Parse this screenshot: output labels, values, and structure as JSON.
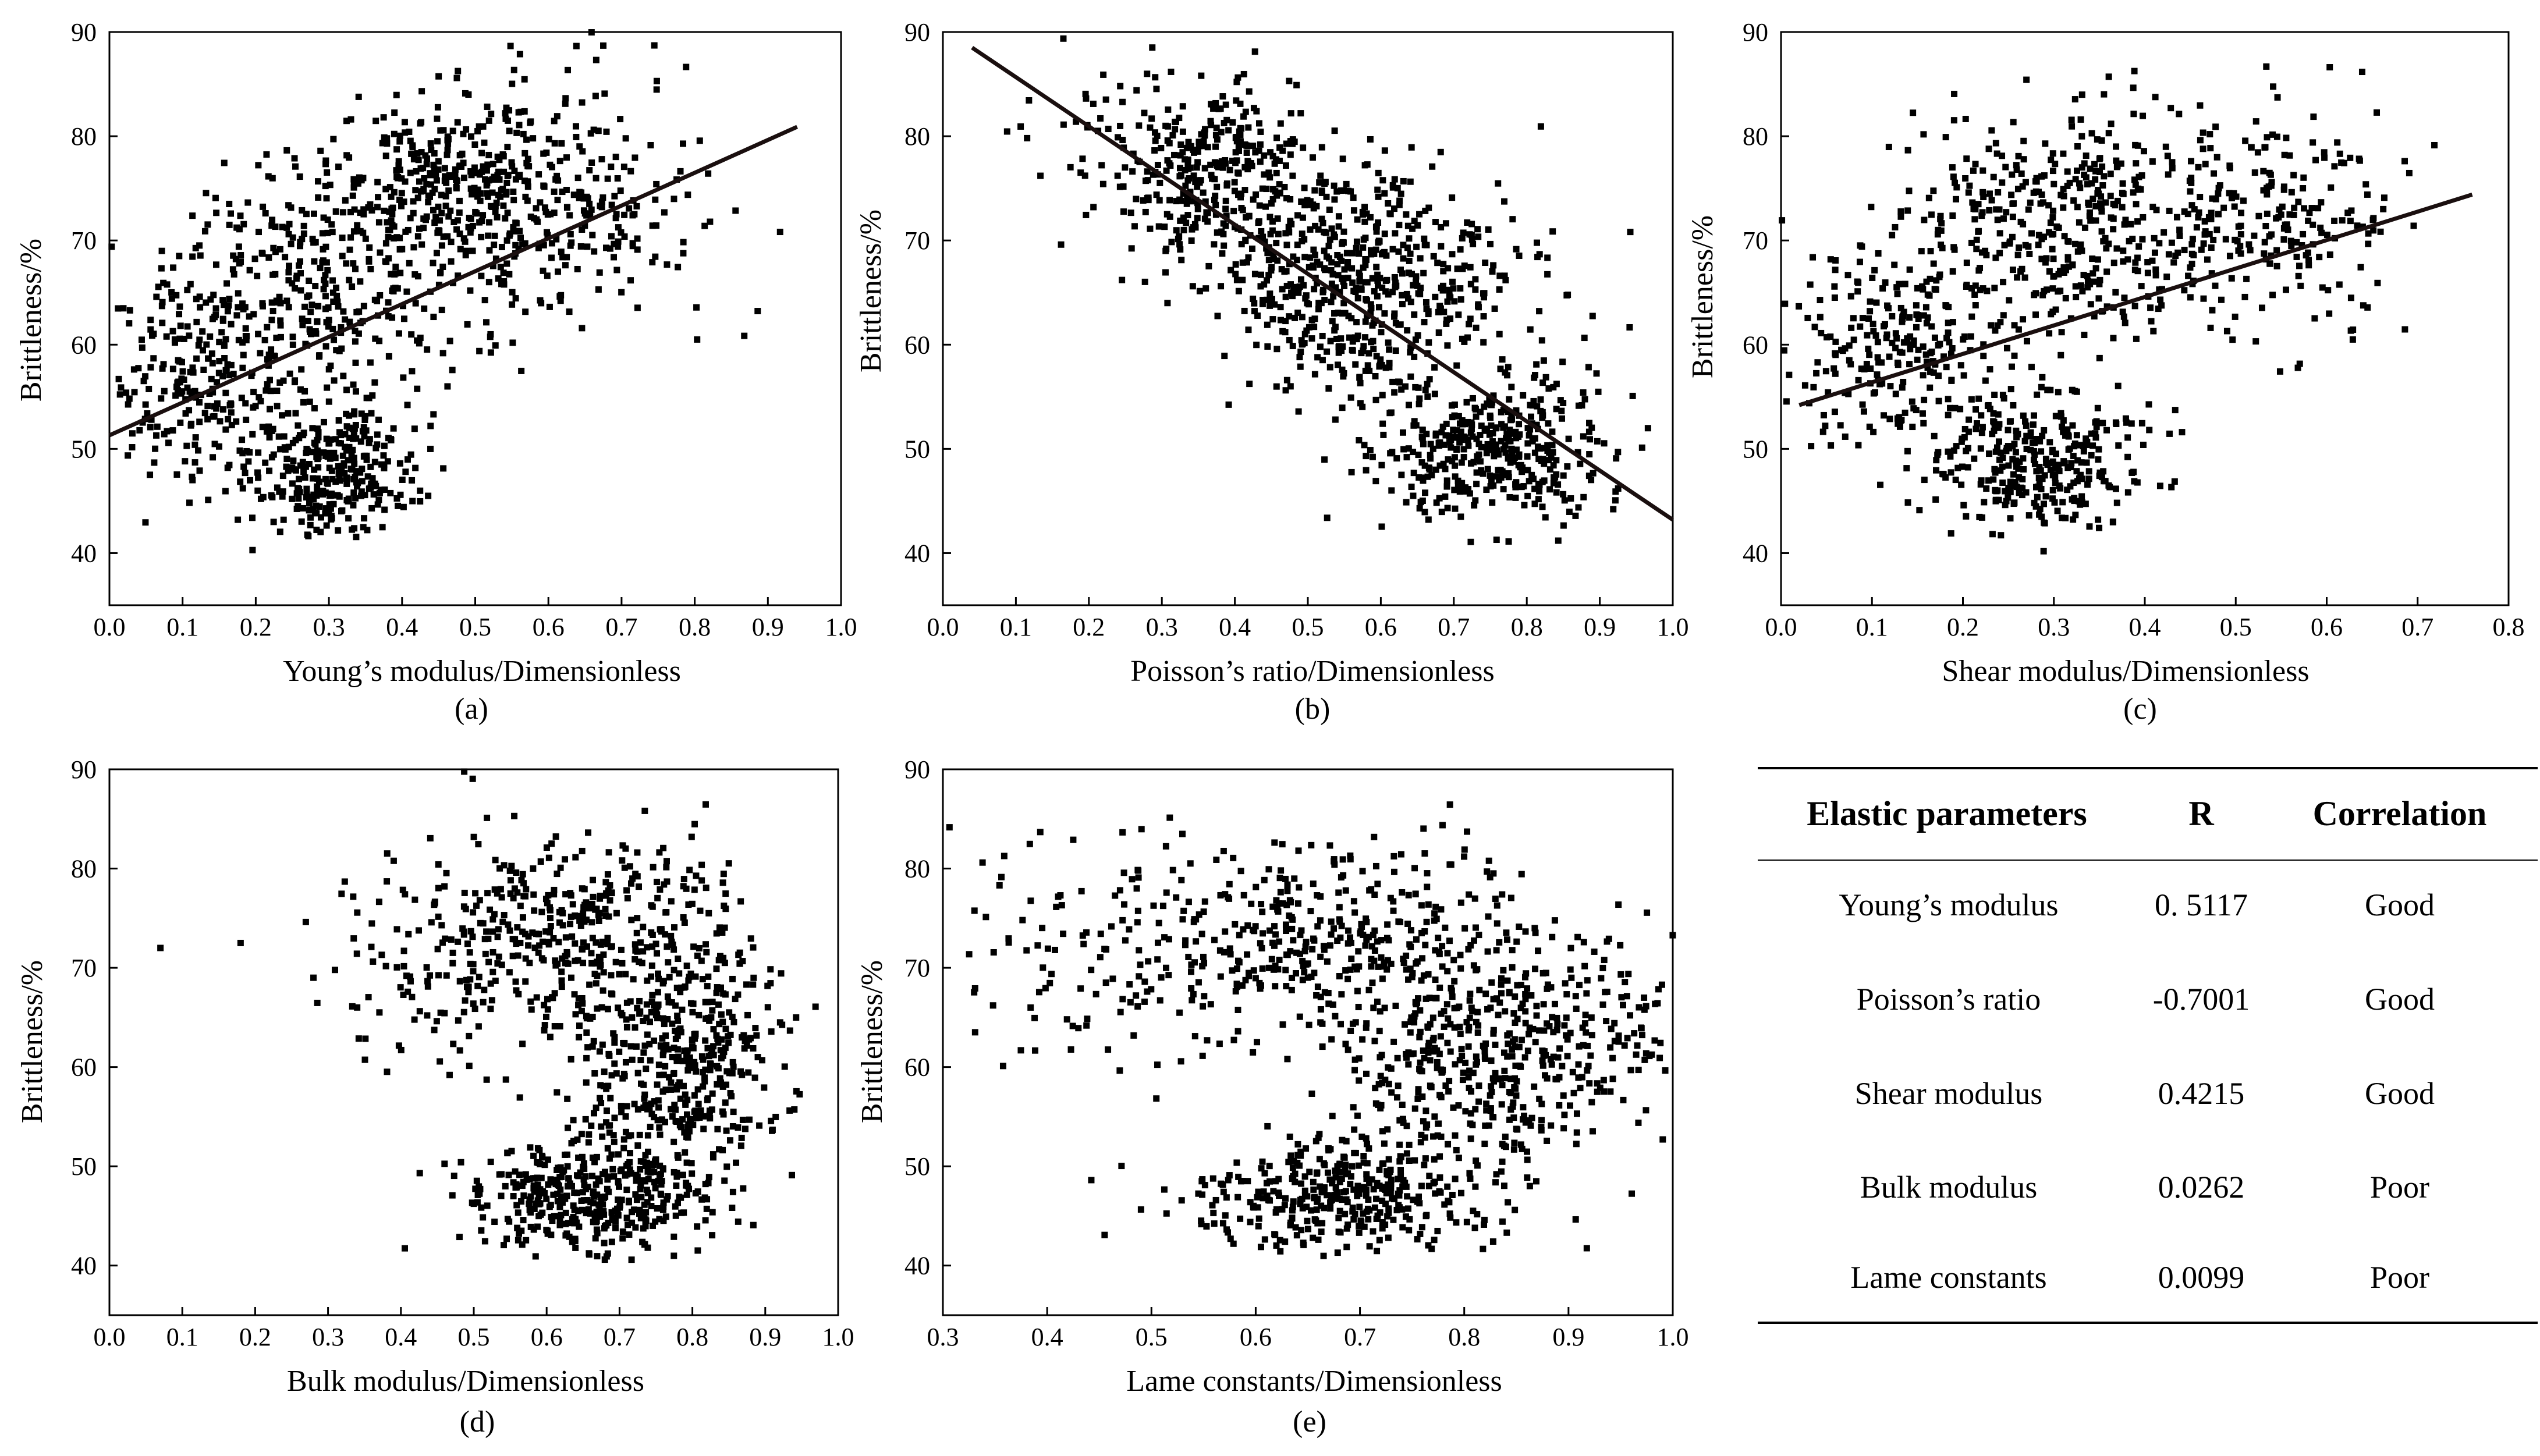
{
  "chart_data": [
    {
      "type": "scatter",
      "panel": "(a)",
      "xlabel": "Young’s modulus/Dimensionless",
      "ylabel": "Brittleness/%",
      "xlim": [
        0.0,
        1.0
      ],
      "ylim": [
        35,
        90
      ],
      "xticks": [
        "0.0",
        "0.1",
        "0.2",
        "0.3",
        "0.4",
        "0.5",
        "0.6",
        "0.7",
        "0.8",
        "0.9",
        "1.0"
      ],
      "yticks": [
        "40",
        "50",
        "60",
        "70",
        "80",
        "90"
      ],
      "fit_line": {
        "x": [
          0.0,
          0.94
        ],
        "y": [
          51.3,
          80.9
        ]
      },
      "clusters": [
        {
          "cx": 0.3,
          "cy": 48,
          "sx": 0.06,
          "sy": 3.3,
          "n": 320
        },
        {
          "cx": 0.12,
          "cy": 58,
          "sx": 0.06,
          "sy": 5.0,
          "n": 220
        },
        {
          "cx": 0.28,
          "cy": 65,
          "sx": 0.1,
          "sy": 6.0,
          "n": 300
        },
        {
          "cx": 0.45,
          "cy": 75,
          "sx": 0.09,
          "sy": 4.5,
          "n": 300
        },
        {
          "cx": 0.62,
          "cy": 73,
          "sx": 0.09,
          "sy": 6.0,
          "n": 260
        }
      ]
    },
    {
      "type": "scatter",
      "panel": "(b)",
      "xlabel": "Poisson’s ratio/Dimensionless",
      "ylabel": "Brittleness/%",
      "xlim": [
        0.0,
        1.0
      ],
      "ylim": [
        35,
        90
      ],
      "xticks": [
        "0.0",
        "0.1",
        "0.2",
        "0.3",
        "0.4",
        "0.5",
        "0.6",
        "0.7",
        "0.8",
        "0.9",
        "1.0"
      ],
      "yticks": [
        "40",
        "50",
        "60",
        "70",
        "80",
        "90"
      ],
      "fit_line": {
        "x": [
          0.04,
          1.0
        ],
        "y": [
          88.5,
          43.2
        ]
      },
      "clusters": [
        {
          "cx": 0.38,
          "cy": 76,
          "sx": 0.07,
          "sy": 4.5,
          "n": 300
        },
        {
          "cx": 0.55,
          "cy": 66,
          "sx": 0.08,
          "sy": 5.5,
          "n": 420
        },
        {
          "cx": 0.75,
          "cy": 50,
          "sx": 0.08,
          "sy": 3.5,
          "n": 380
        },
        {
          "cx": 0.25,
          "cy": 80,
          "sx": 0.08,
          "sy": 4.0,
          "n": 60
        },
        {
          "cx": 0.68,
          "cy": 65,
          "sx": 0.1,
          "sy": 6.0,
          "n": 150
        }
      ]
    },
    {
      "type": "scatter",
      "panel": "(c)",
      "xlabel": "Shear modulus/Dimensionless",
      "ylabel": "Brittleness/%",
      "xlim": [
        0.0,
        0.8
      ],
      "ylim": [
        35,
        90
      ],
      "xticks": [
        "0.0",
        "0.1",
        "0.2",
        "0.3",
        "0.4",
        "0.5",
        "0.6",
        "0.7",
        "0.8"
      ],
      "yticks": [
        "40",
        "50",
        "60",
        "70",
        "80",
        "90"
      ],
      "fit_line": {
        "x": [
          0.02,
          0.76
        ],
        "y": [
          54.2,
          74.4
        ]
      },
      "clusters": [
        {
          "cx": 0.28,
          "cy": 49,
          "sx": 0.06,
          "sy": 3.3,
          "n": 320
        },
        {
          "cx": 0.13,
          "cy": 60,
          "sx": 0.06,
          "sy": 5.0,
          "n": 240
        },
        {
          "cx": 0.3,
          "cy": 72,
          "sx": 0.09,
          "sy": 5.5,
          "n": 380
        },
        {
          "cx": 0.52,
          "cy": 72,
          "sx": 0.08,
          "sy": 5.5,
          "n": 260
        }
      ]
    },
    {
      "type": "scatter",
      "panel": "(d)",
      "xlabel": "Bulk modulus/Dimensionless",
      "ylabel": "Brittleness/%",
      "xlim": [
        0.0,
        1.0
      ],
      "ylim": [
        35,
        90
      ],
      "xticks": [
        "0.0",
        "0.1",
        "0.2",
        "0.3",
        "0.4",
        "0.5",
        "0.6",
        "0.7",
        "0.8",
        "0.9",
        "1.0"
      ],
      "yticks": [
        "40",
        "50",
        "60",
        "70",
        "80",
        "90"
      ],
      "fit_line": null,
      "clusters": [
        {
          "cx": 0.66,
          "cy": 47,
          "sx": 0.08,
          "sy": 2.8,
          "n": 380
        },
        {
          "cx": 0.78,
          "cy": 60,
          "sx": 0.08,
          "sy": 7.0,
          "n": 480
        },
        {
          "cx": 0.63,
          "cy": 74,
          "sx": 0.12,
          "sy": 5.0,
          "n": 380
        },
        {
          "cx": 0.45,
          "cy": 67,
          "sx": 0.06,
          "sy": 5.0,
          "n": 60
        }
      ],
      "extra_points": [
        [
          0.07,
          72
        ],
        [
          0.18,
          72.5
        ],
        [
          0.28,
          69
        ],
        [
          0.34,
          66
        ]
      ]
    },
    {
      "type": "scatter",
      "panel": "(e)",
      "xlabel": "Lame constants/Dimensionless",
      "ylabel": "Brittleness/%",
      "xlim": [
        0.3,
        1.0
      ],
      "ylim": [
        35,
        90
      ],
      "xticks": [
        "0.3",
        "0.4",
        "0.5",
        "0.6",
        "0.7",
        "0.8",
        "0.9",
        "1.0"
      ],
      "yticks": [
        "40",
        "50",
        "60",
        "70",
        "80",
        "90"
      ],
      "fit_line": null,
      "clusters": [
        {
          "cx": 0.68,
          "cy": 47,
          "sx": 0.07,
          "sy": 2.8,
          "n": 360
        },
        {
          "cx": 0.82,
          "cy": 61,
          "sx": 0.07,
          "sy": 6.5,
          "n": 460
        },
        {
          "cx": 0.66,
          "cy": 73,
          "sx": 0.1,
          "sy": 5.0,
          "n": 380
        },
        {
          "cx": 0.45,
          "cy": 71,
          "sx": 0.06,
          "sy": 5.0,
          "n": 90
        },
        {
          "cx": 0.95,
          "cy": 63,
          "sx": 0.04,
          "sy": 4.0,
          "n": 60
        }
      ]
    }
  ],
  "panels": {
    "a": {
      "label": "(a)",
      "xlabel": "Young’s modulus/Dimensionless",
      "ylabel": "Brittleness/%"
    },
    "b": {
      "label": "(b)",
      "xlabel": "Poisson’s ratio/Dimensionless",
      "ylabel": "Brittleness/%"
    },
    "c": {
      "label": "(c)",
      "xlabel": "Shear modulus/Dimensionless",
      "ylabel": "Brittleness/%"
    },
    "d": {
      "label": "(d)",
      "xlabel": "Bulk modulus/Dimensionless",
      "ylabel": "Brittleness/%"
    },
    "e": {
      "label": "(e)",
      "xlabel": "Lame constants/Dimensionless",
      "ylabel": "Brittleness/%"
    }
  },
  "table": {
    "headers": [
      "Elastic parameters",
      "R",
      "Correlation"
    ],
    "rows": [
      [
        "Young’s modulus",
        "0. 5117",
        "Good"
      ],
      [
        "Poisson’s ratio",
        "-0.7001",
        "Good"
      ],
      [
        "Shear modulus",
        "0.4215",
        "Good"
      ],
      [
        "Bulk modulus",
        "0.0262",
        "Poor"
      ],
      [
        "Lame constants",
        "0.0099",
        "Poor"
      ]
    ]
  }
}
